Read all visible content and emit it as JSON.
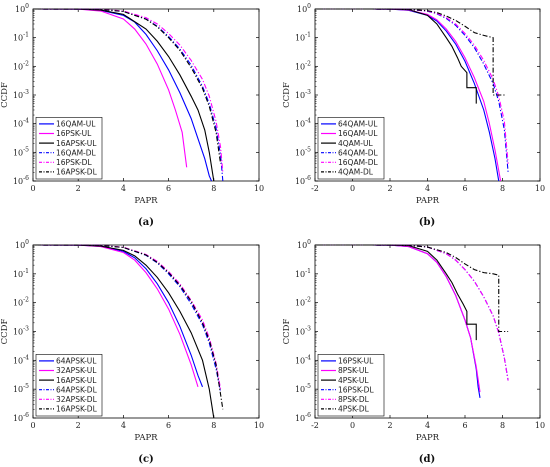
{
  "chart_data": [
    {
      "type": "line",
      "panel_label": "(a)",
      "xlabel": "PAPR",
      "ylabel": "CCDF",
      "xlim": [
        0,
        10
      ],
      "ylim": [
        1e-06,
        1
      ],
      "y_scale": "log",
      "x_ticks": [
        "0",
        "2",
        "4",
        "6",
        "8",
        "10"
      ],
      "y_ticks": [
        "10^0",
        "10^-1",
        "10^-2",
        "10^-3",
        "10^-4",
        "10^-5",
        "10^-6"
      ],
      "legend_position": "bottom-left",
      "series": [
        {
          "name": "16QAM-UL",
          "color": "#0000ff",
          "dash": "solid",
          "x": [
            0,
            2,
            3,
            4,
            4.5,
            5,
            5.5,
            6,
            6.5,
            7,
            7.3,
            7.6,
            7.8,
            7.9
          ],
          "y": [
            1,
            0.99,
            0.9,
            0.6,
            0.35,
            0.13,
            0.035,
            0.0075,
            0.0012,
            0.00015,
            3e-05,
            6e-06,
            1.5e-06,
            1e-06
          ]
        },
        {
          "name": "16PSK-UL",
          "color": "#ff00ff",
          "dash": "solid",
          "x": [
            0,
            2,
            3,
            4,
            4.5,
            5,
            5.5,
            6,
            6.3,
            6.6,
            6.8
          ],
          "y": [
            1,
            0.99,
            0.85,
            0.45,
            0.2,
            0.06,
            0.012,
            0.0015,
            0.0003,
            5e-05,
            3e-06
          ]
        },
        {
          "name": "16APSK-UL",
          "color": "#000000",
          "dash": "solid",
          "x": [
            0,
            2,
            3,
            4,
            5,
            5.5,
            6,
            6.5,
            7,
            7.3,
            7.6,
            7.8,
            8
          ],
          "y": [
            1,
            0.99,
            0.92,
            0.65,
            0.2,
            0.075,
            0.022,
            0.005,
            0.0009,
            0.0003,
            6e-05,
            1e-05,
            1e-06
          ]
        },
        {
          "name": "16QAM-DL",
          "color": "#0000ff",
          "dash": "dashdot",
          "x": [
            0,
            2,
            3,
            4,
            5,
            5.5,
            6,
            6.5,
            7,
            7.5,
            7.8,
            8.1,
            8.3,
            8.4
          ],
          "y": [
            1,
            0.995,
            0.97,
            0.82,
            0.45,
            0.25,
            0.11,
            0.04,
            0.011,
            0.002,
            0.0005,
            7e-05,
            8e-06,
            1e-06
          ]
        },
        {
          "name": "16PSK-DL",
          "color": "#ff00ff",
          "dash": "dashdot",
          "x": [
            0,
            2,
            3,
            4,
            5,
            5.5,
            6,
            6.5,
            7,
            7.5,
            7.8,
            8.1,
            8.3,
            8.4
          ],
          "y": [
            1,
            0.995,
            0.975,
            0.85,
            0.5,
            0.3,
            0.14,
            0.055,
            0.016,
            0.0035,
            0.0009,
            0.00012,
            1.5e-05,
            2e-06
          ]
        },
        {
          "name": "16APSK-DL",
          "color": "#000000",
          "dash": "dashdot",
          "x": [
            0,
            2,
            3,
            4,
            5,
            5.5,
            6,
            6.5,
            7,
            7.5,
            7.8,
            8.1,
            8.3
          ],
          "y": [
            1,
            0.995,
            0.97,
            0.82,
            0.44,
            0.24,
            0.1,
            0.036,
            0.009,
            0.0017,
            0.0004,
            5e-05,
            4e-06
          ]
        }
      ]
    },
    {
      "type": "line",
      "panel_label": "(b)",
      "xlabel": "PAPR",
      "ylabel": "CCDF",
      "xlim": [
        -2,
        10
      ],
      "ylim": [
        1e-06,
        1
      ],
      "y_scale": "log",
      "x_ticks": [
        "-2",
        "0",
        "2",
        "4",
        "6",
        "8",
        "10"
      ],
      "y_ticks": [
        "10^0",
        "10^-1",
        "10^-2",
        "10^-3",
        "10^-4",
        "10^-5",
        "10^-6"
      ],
      "legend_position": "bottom-left",
      "series": [
        {
          "name": "64QAM-UL",
          "color": "#0000ff",
          "dash": "solid",
          "x": [
            -2,
            1,
            2,
            3,
            4,
            4.5,
            5,
            5.5,
            6,
            6.5,
            7,
            7.3,
            7.6,
            7.8
          ],
          "y": [
            1,
            1,
            0.99,
            0.9,
            0.6,
            0.38,
            0.17,
            0.06,
            0.015,
            0.0025,
            0.0003,
            5e-05,
            6e-06,
            1e-06
          ]
        },
        {
          "name": "16QAM-UL",
          "color": "#ff00ff",
          "dash": "solid",
          "x": [
            -2,
            1,
            2,
            3,
            4,
            4.5,
            5,
            5.5,
            6,
            6.5,
            7,
            7.3,
            7.6,
            7.9
          ],
          "y": [
            1,
            1,
            0.99,
            0.92,
            0.65,
            0.42,
            0.2,
            0.075,
            0.02,
            0.004,
            0.0006,
            0.0001,
            1.2e-05,
            1e-06
          ]
        },
        {
          "name": "4QAM-UL",
          "color": "#000000",
          "dash": "solid",
          "x": [
            -2,
            1,
            2,
            3,
            4,
            4.5,
            5,
            5.3,
            5.6,
            5.8,
            6.1,
            6.1,
            6.6,
            6.6
          ],
          "y": [
            1,
            1,
            0.995,
            0.95,
            0.6,
            0.3,
            0.1,
            0.05,
            0.02,
            0.01,
            0.006,
            0.0018,
            0.0018,
            0.0005
          ]
        },
        {
          "name": "64QAM-DL",
          "color": "#0000ff",
          "dash": "dashdot",
          "x": [
            -2,
            1,
            2,
            3,
            4,
            4.5,
            5,
            5.5,
            6,
            6.5,
            7,
            7.5,
            7.8,
            8.1,
            8.3
          ],
          "y": [
            1,
            1,
            0.995,
            0.97,
            0.84,
            0.68,
            0.47,
            0.27,
            0.12,
            0.045,
            0.012,
            0.0025,
            0.0006,
            6e-05,
            2e-06
          ]
        },
        {
          "name": "16QAM-DL",
          "color": "#ff00ff",
          "dash": "dashdot",
          "x": [
            -2,
            1,
            2,
            3,
            4,
            4.5,
            5,
            5.5,
            6,
            6.5,
            7,
            7.5,
            7.8,
            8.1,
            8.3
          ],
          "y": [
            1,
            1,
            0.995,
            0.97,
            0.85,
            0.7,
            0.5,
            0.3,
            0.14,
            0.055,
            0.016,
            0.0035,
            0.0009,
            0.00012,
            4e-06
          ]
        },
        {
          "name": "4QAM-DL",
          "color": "#000000",
          "dash": "dashdot",
          "x": [
            -2,
            1,
            2,
            3,
            4,
            4.5,
            5,
            5.5,
            6,
            6.5,
            7,
            7.5,
            7.5,
            8.2,
            8.2
          ],
          "y": [
            1,
            1,
            0.995,
            0.97,
            0.87,
            0.75,
            0.57,
            0.4,
            0.25,
            0.15,
            0.12,
            0.1,
            0.001,
            0.001,
            0.001
          ]
        }
      ]
    },
    {
      "type": "line",
      "panel_label": "(c)",
      "xlabel": "PAPR",
      "ylabel": "CCDF",
      "xlim": [
        0,
        10
      ],
      "ylim": [
        1e-06,
        1
      ],
      "y_scale": "log",
      "x_ticks": [
        "0",
        "2",
        "4",
        "6",
        "8",
        "10"
      ],
      "y_ticks": [
        "10^0",
        "10^-1",
        "10^-2",
        "10^-3",
        "10^-4",
        "10^-5",
        "10^-6"
      ],
      "legend_position": "bottom-left",
      "series": [
        {
          "name": "64APSK-UL",
          "color": "#0000ff",
          "dash": "solid",
          "x": [
            0,
            2,
            3,
            4,
            4.5,
            5,
            5.5,
            6,
            6.5,
            7,
            7.3,
            7.5
          ],
          "y": [
            1,
            0.99,
            0.9,
            0.6,
            0.36,
            0.15,
            0.045,
            0.01,
            0.0015,
            0.00015,
            3e-05,
            1.2e-05
          ]
        },
        {
          "name": "32APSK-UL",
          "color": "#ff00ff",
          "dash": "solid",
          "x": [
            0,
            2,
            3,
            4,
            4.5,
            5,
            5.5,
            6,
            6.5,
            7,
            7.3
          ],
          "y": [
            1,
            0.99,
            0.88,
            0.55,
            0.3,
            0.11,
            0.03,
            0.006,
            0.0008,
            7e-05,
            1.2e-05
          ]
        },
        {
          "name": "16APSK-UL",
          "color": "#000000",
          "dash": "solid",
          "x": [
            0,
            2,
            3,
            4,
            4.5,
            5,
            5.5,
            6,
            6.5,
            7,
            7.5,
            7.8,
            8
          ],
          "y": [
            1,
            0.99,
            0.92,
            0.65,
            0.42,
            0.2,
            0.075,
            0.022,
            0.005,
            0.0009,
            0.0001,
            1e-05,
            1e-06
          ]
        },
        {
          "name": "64APSK-DL",
          "color": "#0000ff",
          "dash": "dashdot",
          "x": [
            0,
            2,
            3,
            4,
            5,
            5.5,
            6,
            6.5,
            7,
            7.5,
            7.8,
            8.1,
            8.3
          ],
          "y": [
            1,
            0.995,
            0.97,
            0.82,
            0.44,
            0.24,
            0.1,
            0.036,
            0.009,
            0.0017,
            0.0004,
            5e-05,
            8e-06
          ]
        },
        {
          "name": "32APSK-DL",
          "color": "#ff00ff",
          "dash": "dashdot",
          "x": [
            0,
            2,
            3,
            4,
            5,
            5.5,
            6,
            6.5,
            7,
            7.5,
            7.8,
            8.1,
            8.3
          ],
          "y": [
            1,
            0.995,
            0.975,
            0.84,
            0.47,
            0.27,
            0.12,
            0.045,
            0.012,
            0.0025,
            0.0006,
            8e-05,
            1e-05
          ]
        },
        {
          "name": "16APSK-DL",
          "color": "#000000",
          "dash": "dashdot",
          "x": [
            0,
            2,
            3,
            4,
            5,
            5.5,
            6,
            6.5,
            7,
            7.5,
            7.8,
            8.1,
            8.4
          ],
          "y": [
            1,
            0.995,
            0.97,
            0.82,
            0.45,
            0.25,
            0.11,
            0.04,
            0.011,
            0.002,
            0.0005,
            7e-05,
            2e-06
          ]
        }
      ]
    },
    {
      "type": "line",
      "panel_label": "(d)",
      "xlabel": "PAPR",
      "ylabel": "CCDF",
      "xlim": [
        -2,
        10
      ],
      "ylim": [
        1e-06,
        1
      ],
      "y_scale": "log",
      "x_ticks": [
        "-2",
        "0",
        "2",
        "4",
        "6",
        "8",
        "10"
      ],
      "y_ticks": [
        "10^0",
        "10^-1",
        "10^-2",
        "10^-3",
        "10^-4",
        "10^-5",
        "10^-6"
      ],
      "legend_position": "bottom-left",
      "series": [
        {
          "name": "16PSK-UL",
          "color": "#0000ff",
          "dash": "solid",
          "x": [
            -2,
            1,
            2,
            3,
            4,
            4.5,
            5,
            5.5,
            6,
            6.3,
            6.6,
            6.7,
            6.8
          ],
          "y": [
            1,
            1,
            0.99,
            0.88,
            0.5,
            0.25,
            0.08,
            0.018,
            0.0025,
            0.0006,
            5e-05,
            1.2e-05,
            5e-06
          ]
        },
        {
          "name": "8PSK-UL",
          "color": "#ff00ff",
          "dash": "solid",
          "x": [
            -2,
            1,
            2,
            3,
            4,
            4.5,
            5,
            5.5,
            6,
            6.3,
            6.6,
            6.8
          ],
          "y": [
            1,
            1,
            0.99,
            0.88,
            0.5,
            0.25,
            0.08,
            0.018,
            0.0025,
            0.0006,
            6e-05,
            8e-06
          ]
        },
        {
          "name": "4PSK-UL",
          "color": "#000000",
          "dash": "solid",
          "x": [
            -2,
            1,
            2,
            3,
            4,
            4.5,
            5,
            5.3,
            5.6,
            5.9,
            6.1,
            6.1,
            6.6,
            6.6
          ],
          "y": [
            1,
            1,
            0.995,
            0.95,
            0.6,
            0.3,
            0.1,
            0.05,
            0.02,
            0.009,
            0.005,
            0.0018,
            0.0018,
            0.0005
          ]
        },
        {
          "name": "16PSK-DL",
          "color": "#0000ff",
          "dash": "dashdot",
          "x": [
            -2,
            1,
            2,
            3,
            4,
            5,
            5.5,
            6,
            6.5,
            7,
            7.5,
            7.8,
            8.1,
            8.3
          ],
          "y": [
            1,
            1,
            0.995,
            0.97,
            0.85,
            0.5,
            0.3,
            0.14,
            0.055,
            0.016,
            0.0035,
            0.0009,
            0.00012,
            2e-05
          ]
        },
        {
          "name": "8PSK-DL",
          "color": "#ff00ff",
          "dash": "dashdot",
          "x": [
            -2,
            1,
            2,
            3,
            4,
            5,
            5.5,
            6,
            6.5,
            7,
            7.5,
            7.8,
            8.1,
            8.3
          ],
          "y": [
            1,
            1,
            0.995,
            0.97,
            0.85,
            0.5,
            0.3,
            0.14,
            0.055,
            0.016,
            0.0035,
            0.0009,
            0.00012,
            2e-05
          ]
        },
        {
          "name": "4PSK-DL",
          "color": "#000000",
          "dash": "dashdot",
          "x": [
            -2,
            1,
            2,
            3,
            4,
            5,
            5.5,
            6,
            6.5,
            7,
            7.5,
            7.8,
            7.8,
            8.3,
            8.3
          ],
          "y": [
            1,
            1,
            0.995,
            0.97,
            0.85,
            0.55,
            0.37,
            0.22,
            0.14,
            0.11,
            0.1,
            0.09,
            0.001,
            0.001,
            0.001
          ]
        }
      ]
    }
  ]
}
